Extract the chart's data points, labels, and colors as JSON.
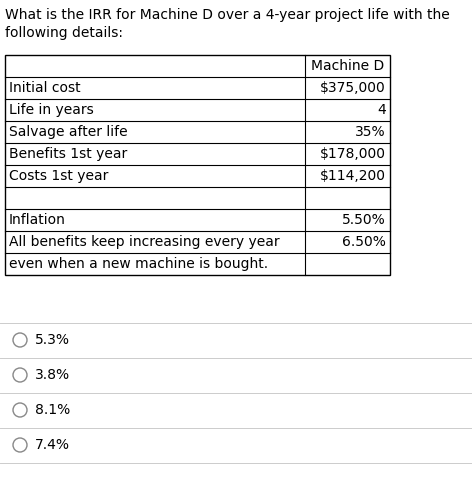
{
  "title_line1": "What is the IRR for Machine D over a 4-year project life with the",
  "title_line2": "following details:",
  "table_header_col2": "Machine D",
  "table_rows": [
    [
      "Initial cost",
      "$375,000"
    ],
    [
      "Life in years",
      "4"
    ],
    [
      "Salvage after life",
      "35%"
    ],
    [
      "Benefits 1st year",
      "$178,000"
    ],
    [
      "Costs 1st year",
      "$114,200"
    ],
    [
      "",
      ""
    ],
    [
      "Inflation",
      "5.50%"
    ],
    [
      "All benefits keep increasing every year",
      "6.50%"
    ],
    [
      "even when a new machine is bought.",
      ""
    ]
  ],
  "options": [
    "5.3%",
    "3.8%",
    "8.1%",
    "7.4%"
  ],
  "bg_color": "#ffffff",
  "text_color": "#000000",
  "title_fontsize": 10.0,
  "table_fontsize": 10.0,
  "option_fontsize": 10.0,
  "fig_width": 4.72,
  "fig_height": 4.83,
  "dpi": 100
}
